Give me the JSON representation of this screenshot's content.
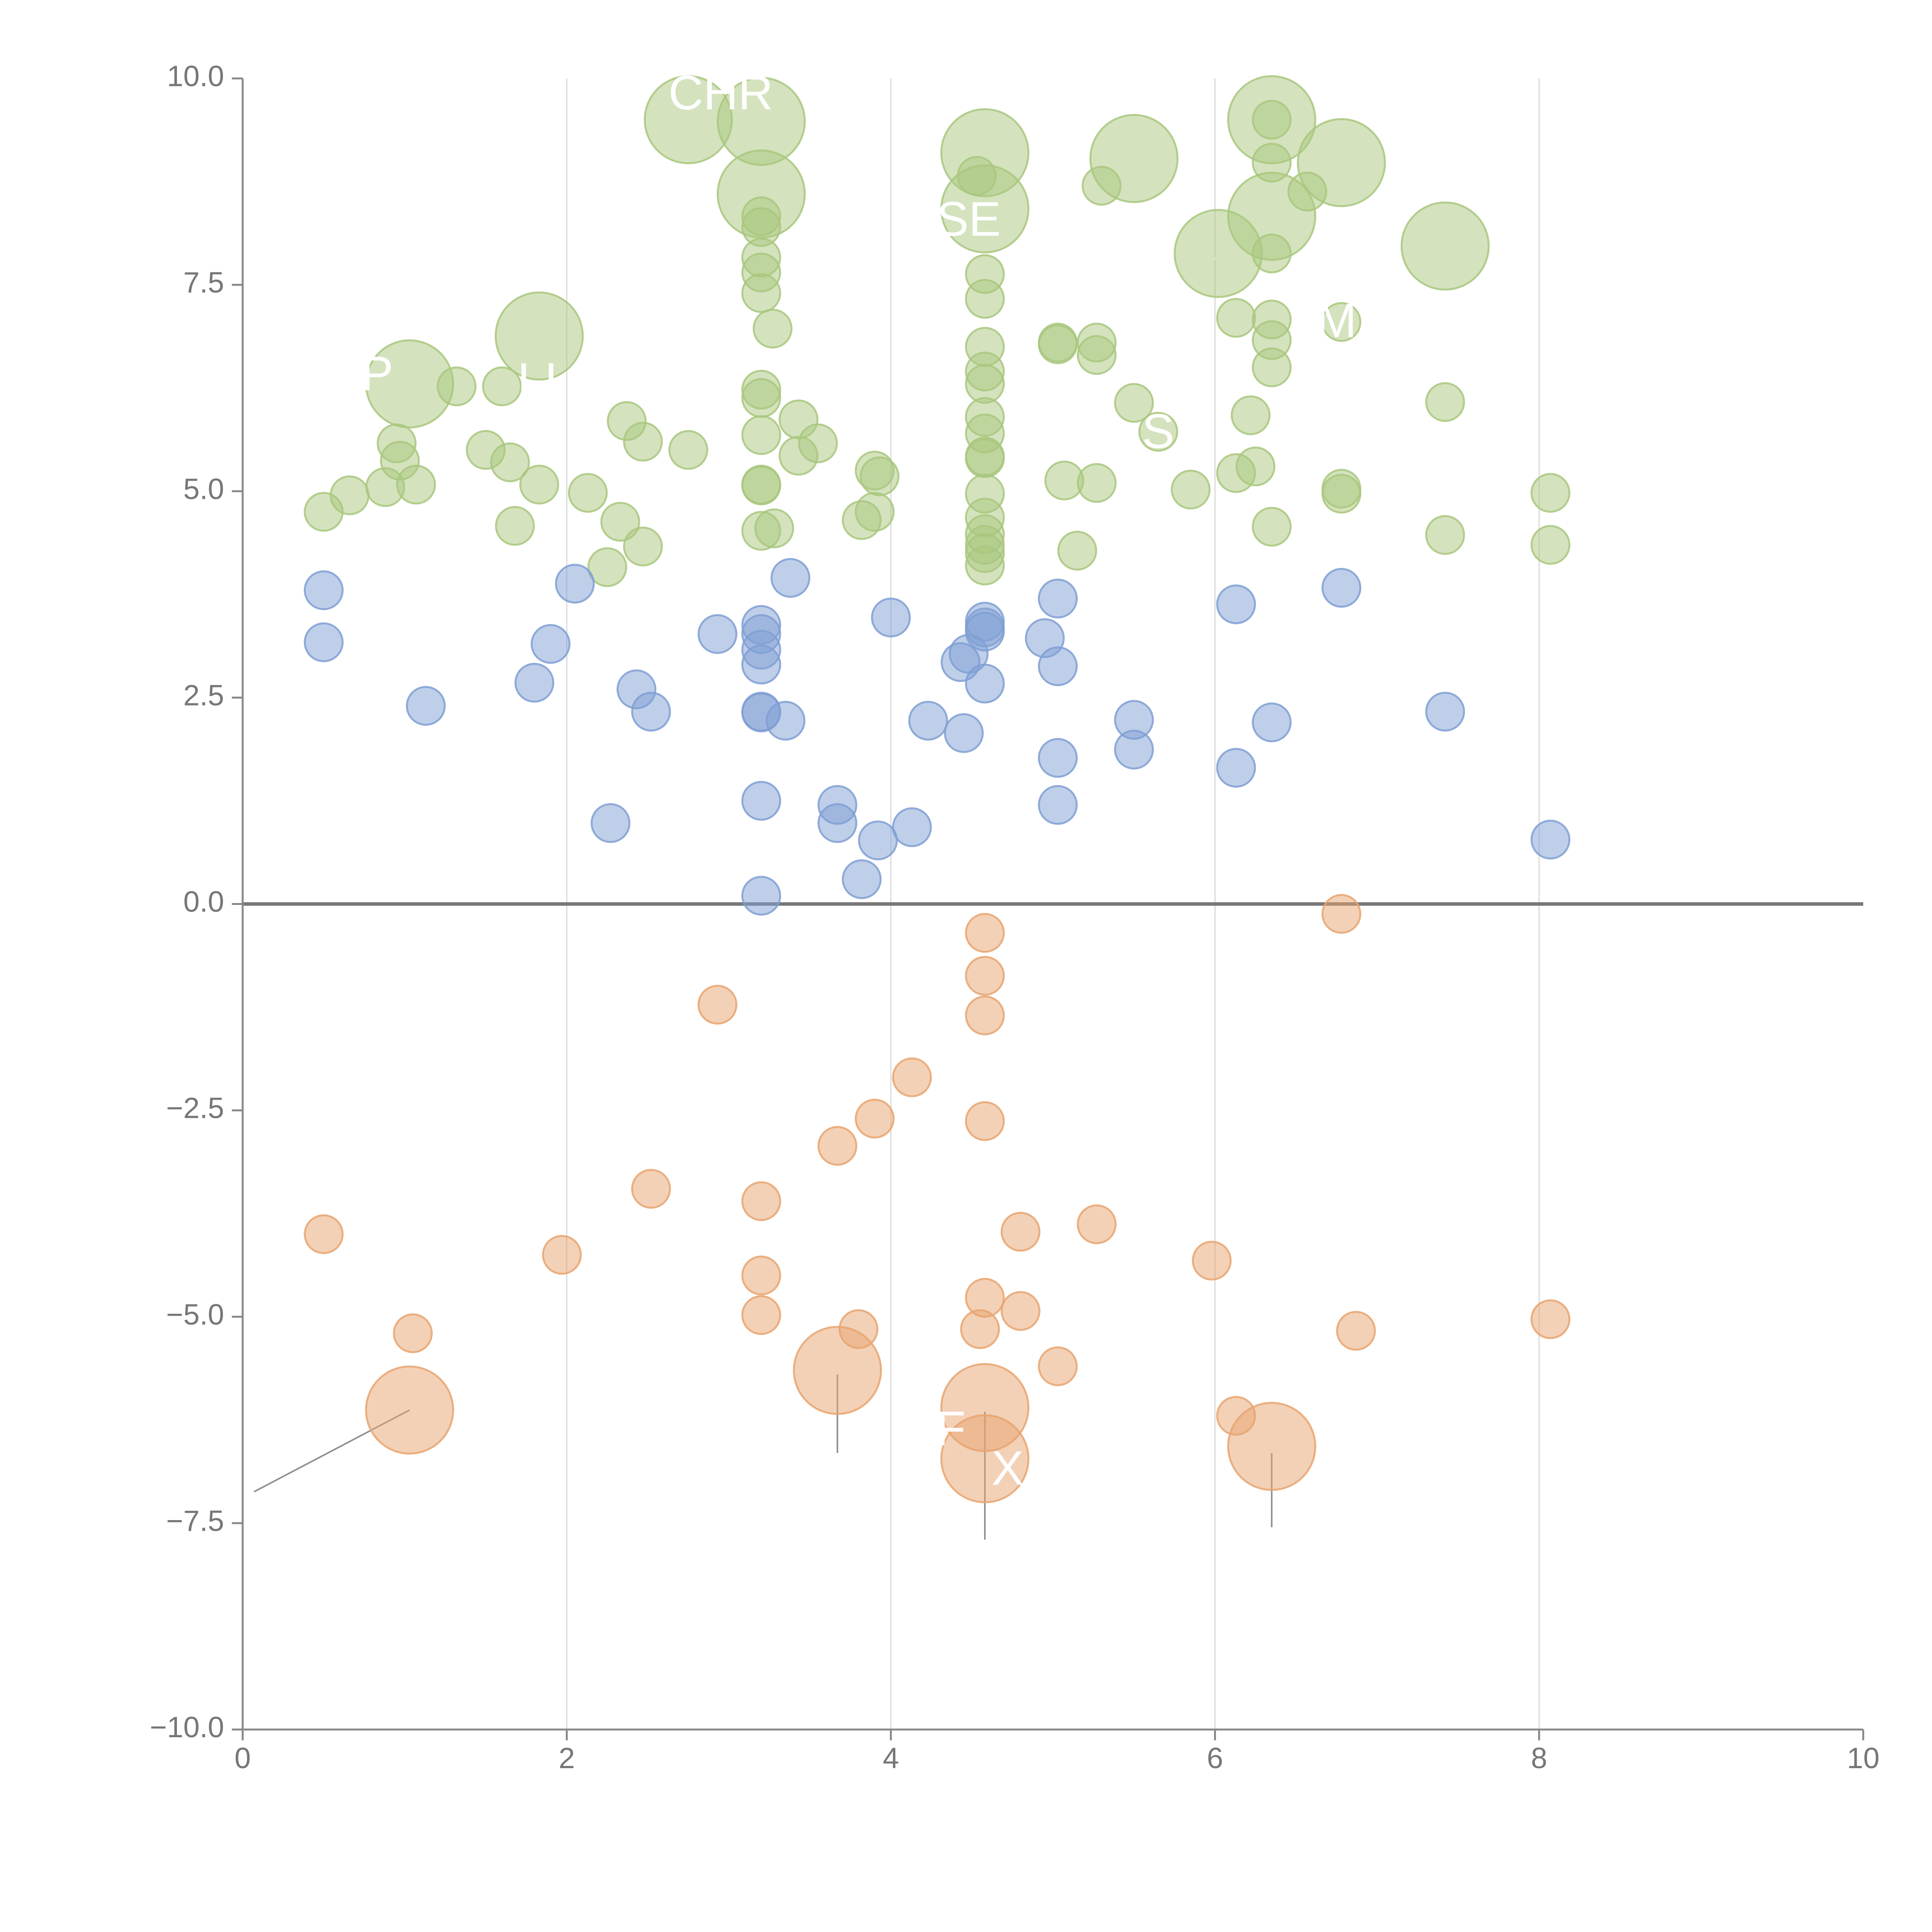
{
  "chart_data": {
    "type": "scatter",
    "title": "",
    "xlabel": "",
    "ylabel": "",
    "xlim": [
      0,
      10
    ],
    "ylim": [
      -10,
      10
    ],
    "grid": {
      "vertical": true,
      "horizontal": false
    },
    "zero_line": true,
    "x_ticks": [
      "0",
      "2",
      "4",
      "6",
      "8",
      "10"
    ],
    "y_ticks": [
      "10.0",
      "7.5",
      "5.0",
      "2.5",
      "0.0",
      "−2.5",
      "−5.0",
      "−7.5",
      "−10.0"
    ],
    "x_tick_values": [
      0,
      2,
      4,
      6,
      8,
      10
    ],
    "y_tick_values": [
      10,
      7.5,
      5,
      2.5,
      0,
      -2.5,
      -5,
      -7.5,
      -10
    ],
    "colors": {
      "green": "#a9c77e",
      "blue": "#7f9fd4",
      "orange": "#e8a470",
      "axis": "#888888",
      "text": "#777777"
    },
    "series": [
      {
        "name": "green",
        "color_key": "green",
        "points": [
          [
            0.5,
            4.75,
            1
          ],
          [
            0.66,
            4.95,
            1
          ],
          [
            0.88,
            5.05,
            1
          ],
          [
            0.95,
            5.58,
            1
          ],
          [
            0.97,
            5.37,
            1
          ],
          [
            1.07,
            5.08,
            1
          ],
          [
            1.03,
            6.3,
            2.3
          ],
          [
            1.32,
            6.27,
            1
          ],
          [
            1.5,
            5.5,
            1
          ],
          [
            1.6,
            6.27,
            1
          ],
          [
            1.65,
            5.35,
            1
          ],
          [
            1.68,
            4.58,
            1
          ],
          [
            1.83,
            6.88,
            2.3
          ],
          [
            1.83,
            5.08,
            1
          ],
          [
            2.13,
            4.98,
            1
          ],
          [
            2.25,
            4.08,
            1
          ],
          [
            2.33,
            4.63,
            1
          ],
          [
            2.37,
            5.85,
            1
          ],
          [
            2.47,
            5.6,
            1
          ],
          [
            2.47,
            4.33,
            1
          ],
          [
            2.75,
            5.5,
            1
          ],
          [
            2.75,
            9.5,
            2.3
          ],
          [
            3.2,
            9.48,
            2.3
          ],
          [
            3.2,
            8.6,
            2.3
          ],
          [
            3.2,
            8.33,
            1
          ],
          [
            3.2,
            8.2,
            1
          ],
          [
            3.2,
            7.83,
            1
          ],
          [
            3.2,
            7.65,
            1
          ],
          [
            3.2,
            7.4,
            1
          ],
          [
            3.2,
            6.23,
            1
          ],
          [
            3.2,
            6.13,
            1
          ],
          [
            3.2,
            5.68,
            1
          ],
          [
            3.2,
            5.08,
            1
          ],
          [
            3.2,
            5.07,
            1
          ],
          [
            3.2,
            4.52,
            1
          ],
          [
            3.27,
            6.97,
            1
          ],
          [
            3.28,
            4.55,
            1
          ],
          [
            3.43,
            5.87,
            1
          ],
          [
            3.43,
            5.43,
            1
          ],
          [
            3.55,
            5.58,
            1
          ],
          [
            3.82,
            4.65,
            1
          ],
          [
            3.9,
            5.25,
            1
          ],
          [
            3.93,
            5.18,
            1
          ],
          [
            3.9,
            4.75,
            1
          ],
          [
            4.58,
            9.1,
            2.3
          ],
          [
            4.58,
            8.42,
            2.3
          ],
          [
            4.53,
            8.82,
            1
          ],
          [
            4.58,
            7.63,
            1
          ],
          [
            4.58,
            7.33,
            1
          ],
          [
            4.58,
            6.75,
            1
          ],
          [
            4.58,
            6.45,
            1
          ],
          [
            4.58,
            6.3,
            1
          ],
          [
            4.58,
            5.9,
            1
          ],
          [
            4.58,
            5.7,
            1
          ],
          [
            4.58,
            5.42,
            1
          ],
          [
            4.58,
            5.4,
            1
          ],
          [
            4.58,
            4.97,
            1
          ],
          [
            4.58,
            4.68,
            1
          ],
          [
            4.58,
            4.48,
            1
          ],
          [
            4.58,
            4.35,
            1
          ],
          [
            4.58,
            4.25,
            1
          ],
          [
            4.58,
            4.1,
            1
          ],
          [
            5.03,
            6.8,
            1
          ],
          [
            5.03,
            6.78,
            1
          ],
          [
            5.07,
            5.13,
            1
          ],
          [
            5.15,
            4.28,
            1
          ],
          [
            5.27,
            6.8,
            1
          ],
          [
            5.27,
            6.65,
            1
          ],
          [
            5.27,
            5.1,
            1
          ],
          [
            5.3,
            8.7,
            1
          ],
          [
            5.5,
            9.03,
            2.3
          ],
          [
            5.5,
            6.07,
            1
          ],
          [
            5.65,
            5.72,
            1
          ],
          [
            5.85,
            5.02,
            1
          ],
          [
            6.02,
            7.88,
            2.3
          ],
          [
            6.13,
            7.1,
            1
          ],
          [
            6.13,
            5.22,
            1
          ],
          [
            6.22,
            5.92,
            1
          ],
          [
            6.25,
            5.3,
            1
          ],
          [
            6.35,
            9.5,
            2.3
          ],
          [
            6.35,
            9.5,
            1
          ],
          [
            6.35,
            8.33,
            2.3
          ],
          [
            6.35,
            8.98,
            1
          ],
          [
            6.35,
            7.88,
            1
          ],
          [
            6.35,
            7.08,
            1
          ],
          [
            6.35,
            6.83,
            1
          ],
          [
            6.35,
            6.5,
            1
          ],
          [
            6.35,
            4.57,
            1
          ],
          [
            6.57,
            8.63,
            1
          ],
          [
            6.78,
            8.98,
            2.3
          ],
          [
            6.78,
            7.05,
            1
          ],
          [
            6.78,
            5.03,
            1
          ],
          [
            6.78,
            4.97,
            1
          ],
          [
            7.42,
            7.97,
            2.3
          ],
          [
            7.42,
            6.08,
            1
          ],
          [
            7.42,
            4.47,
            1
          ],
          [
            8.07,
            4.98,
            1
          ],
          [
            8.07,
            4.35,
            1
          ]
        ]
      },
      {
        "name": "blue",
        "color_key": "blue",
        "points": [
          [
            0.5,
            3.8,
            1
          ],
          [
            0.5,
            3.17,
            1
          ],
          [
            1.13,
            2.4,
            1
          ],
          [
            1.8,
            2.68,
            1
          ],
          [
            1.9,
            3.15,
            1
          ],
          [
            2.05,
            3.88,
            1
          ],
          [
            2.27,
            0.98,
            1
          ],
          [
            2.43,
            2.6,
            1
          ],
          [
            2.52,
            2.33,
            1
          ],
          [
            2.93,
            3.27,
            1
          ],
          [
            3.2,
            3.38,
            1
          ],
          [
            3.2,
            3.27,
            1
          ],
          [
            3.2,
            3.08,
            1
          ],
          [
            3.2,
            2.9,
            1
          ],
          [
            3.2,
            2.33,
            1
          ],
          [
            3.2,
            2.32,
            1
          ],
          [
            3.2,
            1.25,
            1
          ],
          [
            3.2,
            0.1,
            1
          ],
          [
            3.35,
            2.22,
            1
          ],
          [
            3.38,
            3.95,
            1
          ],
          [
            3.67,
            1.2,
            1
          ],
          [
            3.67,
            0.98,
            1
          ],
          [
            3.82,
            0.3,
            1
          ],
          [
            3.92,
            0.77,
            1
          ],
          [
            4.0,
            3.47,
            1
          ],
          [
            4.13,
            0.93,
            1
          ],
          [
            4.23,
            2.22,
            1
          ],
          [
            4.43,
            2.93,
            1
          ],
          [
            4.45,
            2.07,
            1
          ],
          [
            4.48,
            3.03,
            1
          ],
          [
            4.58,
            3.42,
            1
          ],
          [
            4.58,
            3.35,
            1
          ],
          [
            4.58,
            3.3,
            1
          ],
          [
            4.58,
            2.67,
            1
          ],
          [
            4.95,
            3.22,
            1
          ],
          [
            5.03,
            3.7,
            1
          ],
          [
            5.03,
            2.88,
            1
          ],
          [
            5.03,
            1.77,
            1
          ],
          [
            5.03,
            1.2,
            1
          ],
          [
            5.5,
            2.23,
            1
          ],
          [
            5.5,
            1.87,
            1
          ],
          [
            6.13,
            3.63,
            1
          ],
          [
            6.13,
            1.65,
            1
          ],
          [
            6.35,
            2.2,
            1
          ],
          [
            6.78,
            3.83,
            1
          ],
          [
            7.42,
            2.33,
            1
          ],
          [
            8.07,
            0.78,
            1
          ]
        ]
      },
      {
        "name": "orange",
        "color_key": "orange",
        "points": [
          [
            0.5,
            -4.0,
            1
          ],
          [
            1.05,
            -5.2,
            1
          ],
          [
            1.03,
            -6.13,
            2.3
          ],
          [
            1.97,
            -4.25,
            1
          ],
          [
            2.52,
            -3.45,
            1
          ],
          [
            2.93,
            -1.22,
            1
          ],
          [
            3.2,
            -3.6,
            1
          ],
          [
            3.2,
            -4.5,
            1
          ],
          [
            3.2,
            -4.98,
            1
          ],
          [
            3.67,
            -2.93,
            1
          ],
          [
            3.67,
            -5.65,
            2.3
          ],
          [
            3.8,
            -5.15,
            1
          ],
          [
            3.9,
            -2.6,
            1
          ],
          [
            4.13,
            -2.1,
            1
          ],
          [
            4.58,
            -0.35,
            1
          ],
          [
            4.58,
            -0.87,
            1
          ],
          [
            4.58,
            -1.35,
            1
          ],
          [
            4.58,
            -2.63,
            1
          ],
          [
            4.58,
            -4.77,
            1
          ],
          [
            4.55,
            -5.15,
            1
          ],
          [
            4.58,
            -6.1,
            2.3
          ],
          [
            4.58,
            -6.72,
            2.3
          ],
          [
            4.8,
            -3.97,
            1
          ],
          [
            4.8,
            -4.93,
            1
          ],
          [
            5.03,
            -5.6,
            1
          ],
          [
            5.27,
            -3.88,
            1
          ],
          [
            5.98,
            -4.32,
            1
          ],
          [
            6.13,
            -6.2,
            1
          ],
          [
            6.35,
            -6.57,
            2.3
          ],
          [
            6.78,
            -0.12,
            1
          ],
          [
            6.87,
            -5.17,
            1
          ],
          [
            8.07,
            -5.03,
            1
          ]
        ]
      }
    ],
    "annotations": [
      {
        "text": "CHR",
        "x": 2.95,
        "y": 9.78,
        "color": "#ffffff"
      },
      {
        "text": "SE",
        "x": 4.48,
        "y": 8.25,
        "color": "#ffffff"
      },
      {
        "text": "LI",
        "x": 1.82,
        "y": 6.3,
        "color": "#ffffff"
      },
      {
        "text": "P",
        "x": 0.83,
        "y": 6.38,
        "color": "#ffffff"
      },
      {
        "text": "M",
        "x": 6.75,
        "y": 7.02,
        "color": "#ffffff"
      },
      {
        "text": "ST",
        "x": 5.74,
        "y": 5.68,
        "color": "#ffffff"
      },
      {
        "text": "X",
        "x": 4.72,
        "y": -6.88,
        "color": "#ffffff"
      },
      {
        "text": "F",
        "x": 4.37,
        "y": -6.4,
        "color": "#ffffff"
      }
    ],
    "leaders": [
      [
        1.03,
        -6.13,
        0.07,
        -7.12
      ],
      [
        3.67,
        -5.7,
        3.67,
        -6.65
      ],
      [
        4.58,
        -6.15,
        4.58,
        -7.7
      ],
      [
        6.35,
        -6.65,
        6.35,
        -7.55
      ],
      [
        3.2,
        8.6,
        3.02,
        8.9
      ],
      [
        3.23,
        9.6,
        3.32,
        9.2
      ],
      [
        4.58,
        9.1,
        4.78,
        9.2
      ],
      [
        5.5,
        9.03,
        5.38,
        9.28
      ],
      [
        6.02,
        7.88,
        5.93,
        7.58
      ],
      [
        6.35,
        8.33,
        6.28,
        8.58
      ],
      [
        6.35,
        9.5,
        6.43,
        9.1
      ],
      [
        6.78,
        8.98,
        6.94,
        9.12
      ],
      [
        7.42,
        7.97,
        7.74,
        8.0
      ],
      [
        1.83,
        6.88,
        1.93,
        6.75
      ],
      [
        1.03,
        6.3,
        0.9,
        6.45
      ]
    ]
  }
}
